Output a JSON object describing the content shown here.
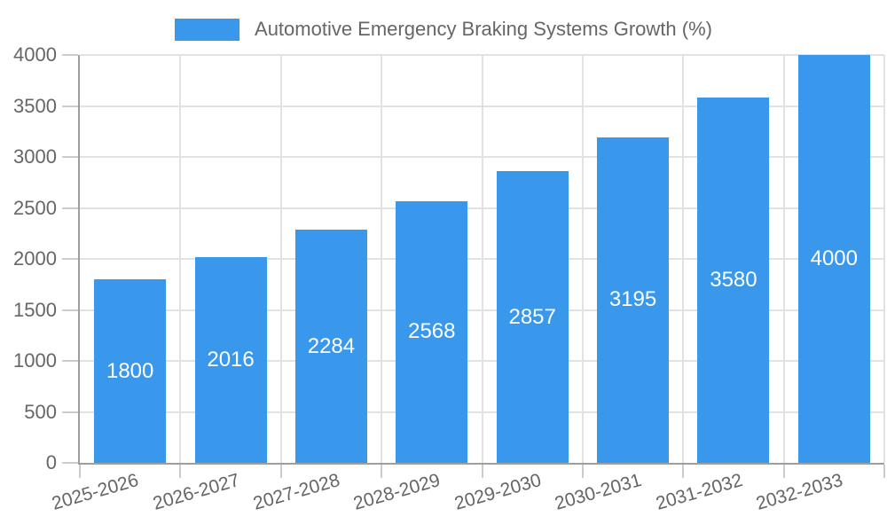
{
  "legend": {
    "label": "Automotive Emergency Braking Systems Growth (%)"
  },
  "chart_data": {
    "type": "bar",
    "title": "Automotive Emergency Braking Systems Growth (%)",
    "categories": [
      "2025-2026",
      "2026-2027",
      "2027-2028",
      "2028-2029",
      "2029-2030",
      "2030-2031",
      "2031-2032",
      "2032-2033"
    ],
    "values": [
      1800,
      2016,
      2284,
      2568,
      2857,
      3195,
      3580,
      4000
    ],
    "value_labels": [
      "1800",
      "2016",
      "2284",
      "2568",
      "2857",
      "3195",
      "3580",
      "4000"
    ],
    "xlabel": "",
    "ylabel": "",
    "ylim": [
      0,
      4000
    ],
    "ytick_step": 500,
    "ytick_labels": [
      "0",
      "500",
      "1000",
      "1500",
      "2000",
      "2500",
      "3000",
      "3500",
      "4000"
    ],
    "grid": true,
    "legend_position": "top-center",
    "x_label_rotation_deg": -16
  },
  "colors": {
    "bar": "#3998ec",
    "grid": "#e2e2e2",
    "axis": "#9e9e9e",
    "tick": "#cccccc",
    "tick_text": "#666666",
    "value_text": "#ffffff",
    "background": "#ffffff"
  }
}
